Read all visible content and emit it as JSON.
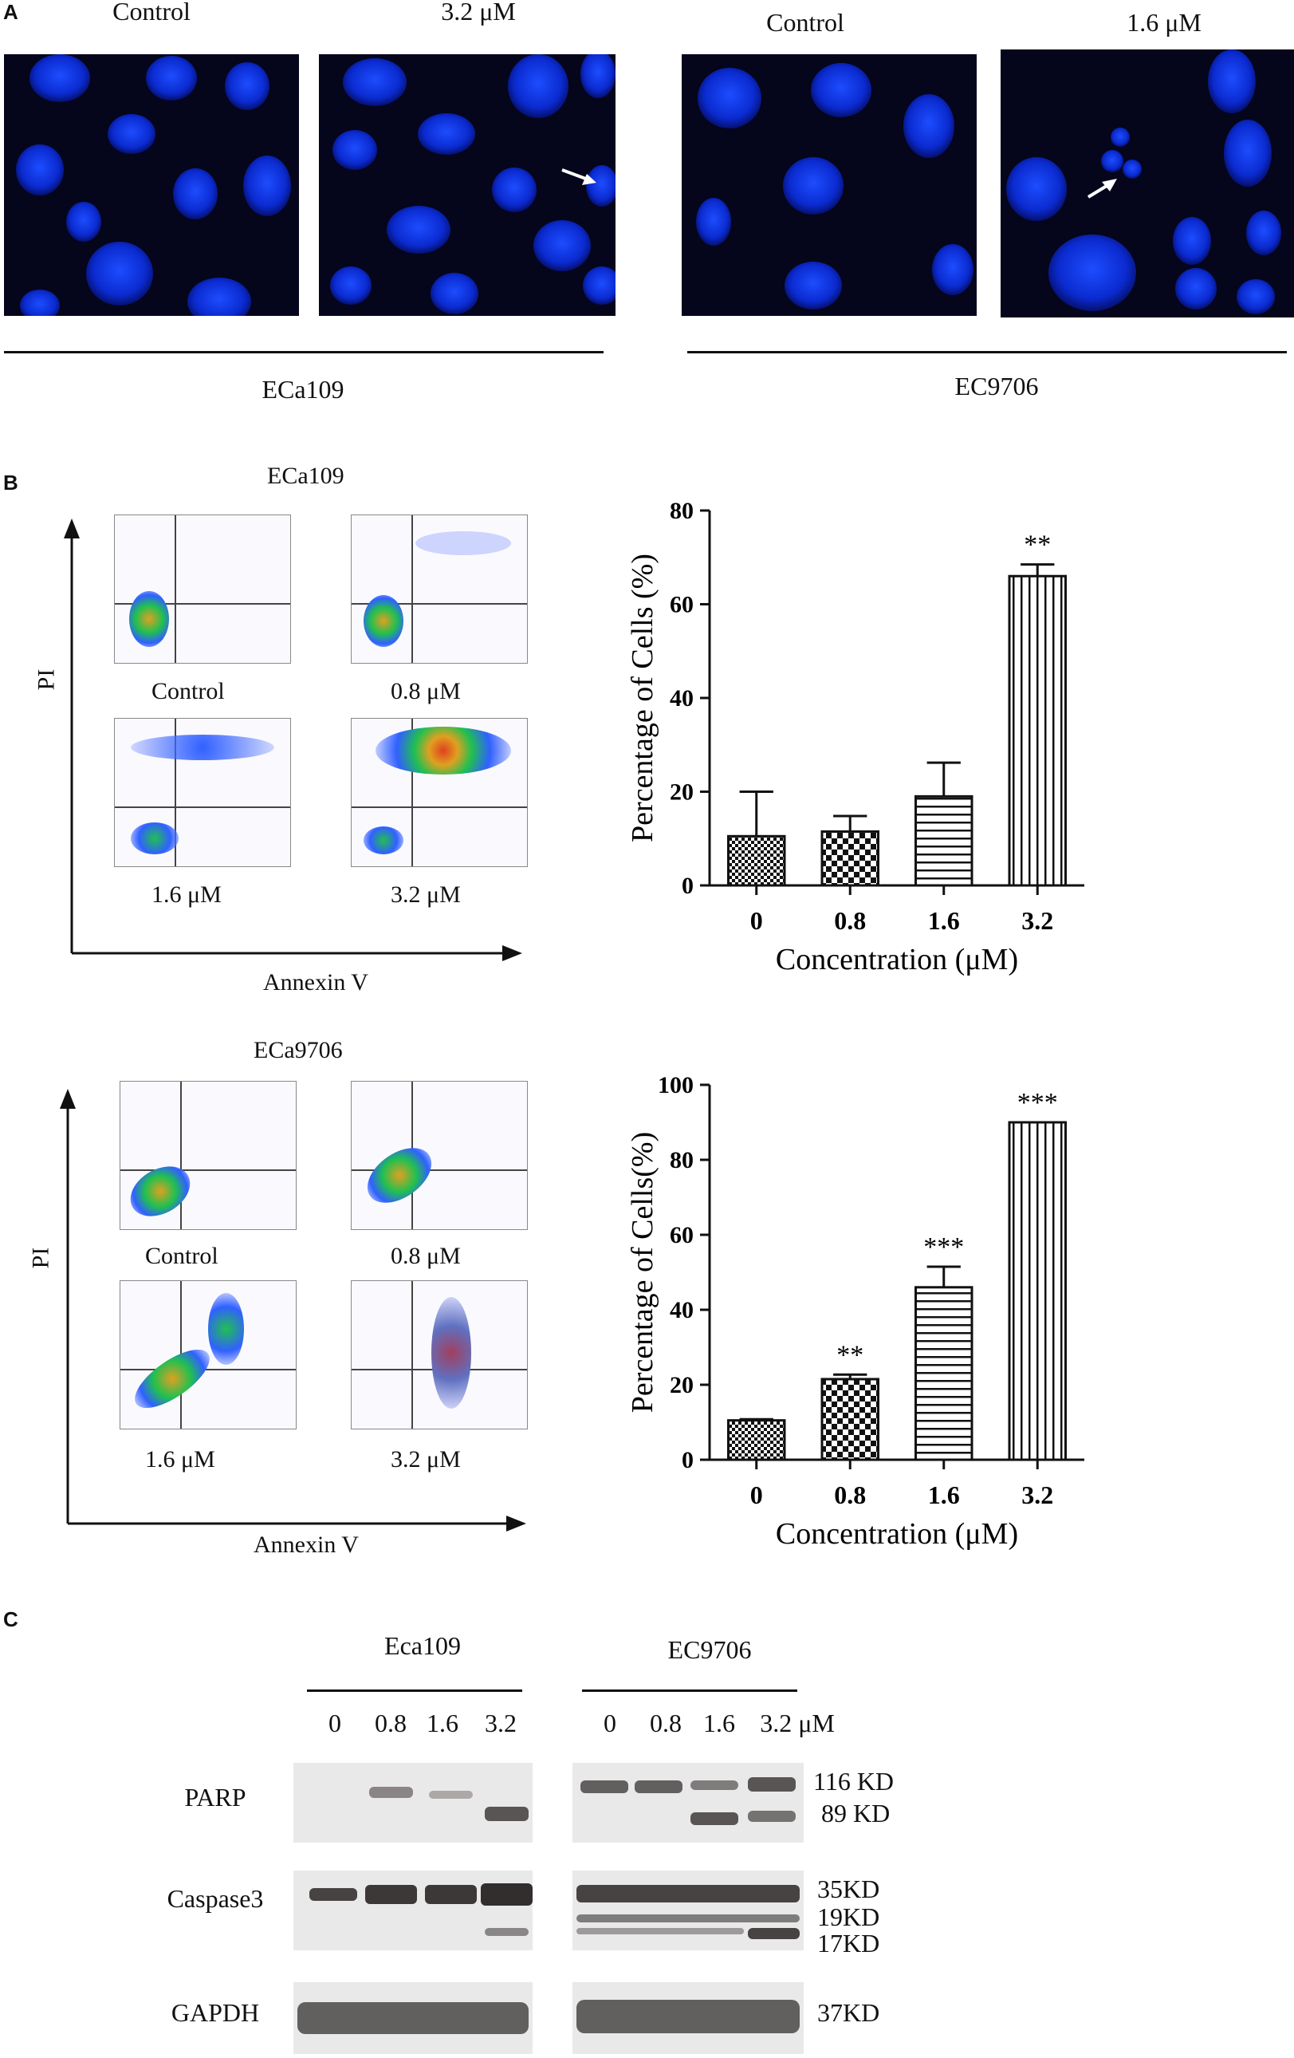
{
  "panel_a": {
    "letter": "A",
    "groups": [
      {
        "cell_line": "ECa109",
        "conditions": [
          "Control",
          "3.2 μM"
        ]
      },
      {
        "cell_line": "EC9706",
        "conditions": [
          "Control",
          "1.6 μM"
        ]
      }
    ]
  },
  "panel_b": {
    "letter": "B",
    "flow_sets": [
      {
        "title": "ECa109",
        "conditions": [
          "Control",
          "0.8 μM",
          "1.6 μM",
          "3.2 μM"
        ],
        "x_axis": "Annexin V",
        "y_axis": "PI"
      },
      {
        "title": "ECa9706",
        "conditions": [
          "Control",
          "0.8 μM",
          "1.6 μM",
          "3.2 μM"
        ],
        "x_axis": "Annexin V",
        "y_axis": "PI"
      }
    ]
  },
  "chart_data": [
    {
      "type": "bar",
      "title": "",
      "categories": [
        "0",
        "0.8",
        "1.6",
        "3.2"
      ],
      "values": [
        10.5,
        11.5,
        19,
        66
      ],
      "errors": [
        9.5,
        3.3,
        7.2,
        2.5
      ],
      "significance": [
        "",
        "",
        "",
        "**"
      ],
      "xlabel": "Concentration (μM)",
      "ylabel": "Percentage of Cells (%)",
      "ylim": [
        0,
        80
      ],
      "yticks": [
        0,
        20,
        40,
        60,
        80
      ]
    },
    {
      "type": "bar",
      "title": "",
      "categories": [
        "0",
        "0.8",
        "1.6",
        "3.2"
      ],
      "values": [
        10.5,
        21.5,
        46,
        90
      ],
      "errors": [
        0.3,
        1.2,
        5.5,
        0
      ],
      "significance": [
        "",
        "**",
        "***",
        "***"
      ],
      "xlabel": "Concentration (μM)",
      "ylabel": "Percentage of Cells(%)",
      "ylim": [
        0,
        100
      ],
      "yticks": [
        0,
        20,
        40,
        60,
        80,
        100
      ]
    }
  ],
  "panel_c": {
    "letter": "C",
    "group_left": "Eca109",
    "group_right": "EC9706",
    "lanes_left": [
      "0",
      "0.8",
      "1.6",
      "3.2"
    ],
    "lanes_right": [
      "0",
      "0.8",
      "1.6",
      "3.2 μM"
    ],
    "proteins": [
      "PARP",
      "Caspase3",
      "GAPDH"
    ],
    "sizes_parp": [
      "116 KD",
      "89 KD"
    ],
    "sizes_casp": [
      "35KD",
      "19KD",
      "17KD"
    ],
    "sizes_gapdh": [
      "37KD"
    ]
  }
}
